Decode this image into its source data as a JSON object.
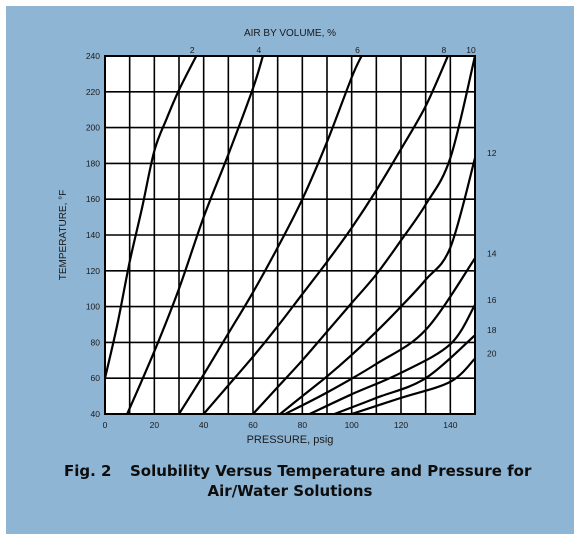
{
  "chart_data": {
    "type": "line",
    "xlabel": "PRESSURE, psig",
    "ylabel": "TEMPERATURE, °F",
    "top_axis_label": "AIR BY VOLUME, %",
    "xlim": [
      0,
      150
    ],
    "ylim": [
      40,
      240
    ],
    "x_ticks": [
      0,
      20,
      40,
      60,
      80,
      100,
      120,
      140
    ],
    "y_ticks": [
      40,
      60,
      80,
      100,
      120,
      140,
      160,
      180,
      200,
      220,
      240
    ],
    "grid": true,
    "series": [
      {
        "name": "2",
        "points": [
          [
            0,
            60
          ],
          [
            5,
            90
          ],
          [
            10,
            125
          ],
          [
            15,
            155
          ],
          [
            20,
            187
          ],
          [
            25,
            205
          ],
          [
            30,
            221
          ],
          [
            37,
            240
          ]
        ]
      },
      {
        "name": "4",
        "points": [
          [
            9,
            40
          ],
          [
            20,
            75
          ],
          [
            30,
            110
          ],
          [
            40,
            150
          ],
          [
            50,
            185
          ],
          [
            60,
            222
          ],
          [
            64,
            240
          ]
        ]
      },
      {
        "name": "6",
        "points": [
          [
            30,
            40
          ],
          [
            40,
            62
          ],
          [
            50,
            85
          ],
          [
            60,
            108
          ],
          [
            70,
            133
          ],
          [
            80,
            160
          ],
          [
            90,
            192
          ],
          [
            100,
            228
          ],
          [
            104,
            240
          ]
        ]
      },
      {
        "name": "8",
        "points": [
          [
            40,
            40
          ],
          [
            50,
            56
          ],
          [
            60,
            72
          ],
          [
            70,
            89
          ],
          [
            80,
            107
          ],
          [
            90,
            125
          ],
          [
            100,
            144
          ],
          [
            110,
            165
          ],
          [
            120,
            188
          ],
          [
            130,
            212
          ],
          [
            139,
            240
          ]
        ]
      },
      {
        "name": "10",
        "points": [
          [
            60,
            40
          ],
          [
            70,
            55
          ],
          [
            80,
            70
          ],
          [
            90,
            86
          ],
          [
            100,
            102
          ],
          [
            110,
            118
          ],
          [
            120,
            137
          ],
          [
            130,
            157
          ],
          [
            140,
            183
          ],
          [
            150,
            240
          ]
        ]
      },
      {
        "name": "12",
        "points": [
          [
            71,
            40
          ],
          [
            80,
            50
          ],
          [
            90,
            61
          ],
          [
            100,
            73
          ],
          [
            110,
            86
          ],
          [
            120,
            100
          ],
          [
            130,
            115
          ],
          [
            140,
            133
          ],
          [
            150,
            183
          ]
        ]
      },
      {
        "name": "14",
        "points": [
          [
            73,
            40
          ],
          [
            90,
            52
          ],
          [
            110,
            68
          ],
          [
            130,
            87
          ],
          [
            150,
            127
          ]
        ]
      },
      {
        "name": "16",
        "points": [
          [
            83,
            40
          ],
          [
            100,
            51
          ],
          [
            120,
            63
          ],
          [
            140,
            79
          ],
          [
            150,
            101
          ]
        ]
      },
      {
        "name": "18",
        "points": [
          [
            93,
            40
          ],
          [
            110,
            49
          ],
          [
            130,
            60
          ],
          [
            150,
            84
          ]
        ]
      },
      {
        "name": "20",
        "points": [
          [
            100,
            40
          ],
          [
            120,
            49
          ],
          [
            140,
            58
          ],
          [
            150,
            71
          ]
        ]
      }
    ]
  },
  "caption": {
    "label": "Fig. 2",
    "line1": "Solubility Versus Temperature and Pressure for",
    "line2": "Air/Water Solutions"
  }
}
